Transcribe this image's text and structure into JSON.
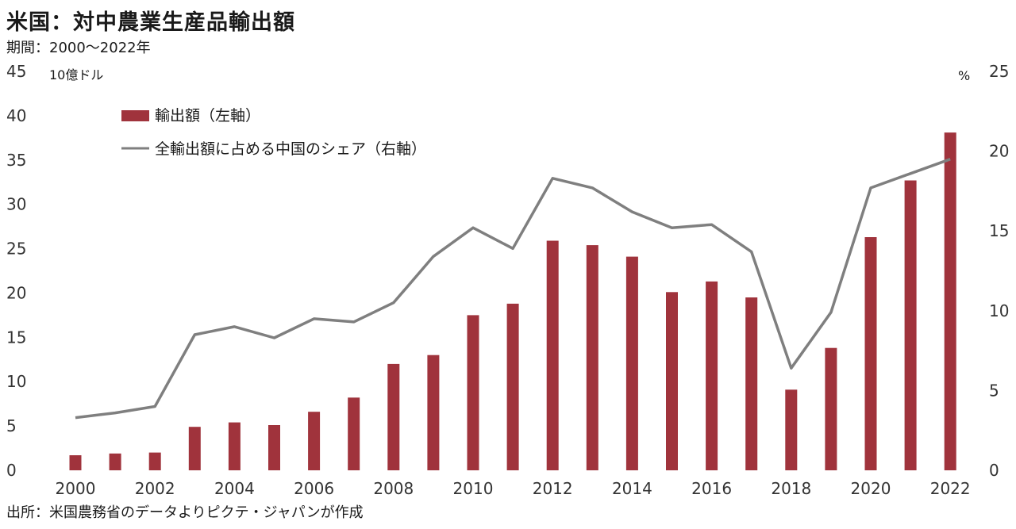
{
  "title": "米国：対中農業生産品輸出額",
  "period": "期間：2000～2022年",
  "source": "出所：米国農務省のデータよりピクテ・ジャパンが作成",
  "colors": {
    "bar": "#a0333c",
    "line": "#7f7f7f"
  },
  "chart_data": {
    "type": "bar",
    "title": "米国：対中農業生産品輸出額",
    "left_axis_unit": "10億ドル",
    "right_axis_unit": "%",
    "x": [
      2000,
      2001,
      2002,
      2003,
      2004,
      2005,
      2006,
      2007,
      2008,
      2009,
      2010,
      2011,
      2012,
      2013,
      2014,
      2015,
      2016,
      2017,
      2018,
      2019,
      2020,
      2021,
      2022
    ],
    "x_tick_labels": [
      "2000",
      "2002",
      "2004",
      "2006",
      "2008",
      "2010",
      "2012",
      "2014",
      "2016",
      "2018",
      "2020",
      "2022"
    ],
    "y_left": {
      "min": 0,
      "max": 45,
      "ticks": [
        "0",
        "5",
        "10",
        "15",
        "20",
        "25",
        "30",
        "35",
        "40",
        "45"
      ]
    },
    "y_right": {
      "min": 0,
      "max": 25,
      "ticks": [
        "0",
        "5",
        "10",
        "15",
        "20",
        "25"
      ]
    },
    "grid": false,
    "legend_position": "top-left",
    "series": [
      {
        "name": "輸出額（左軸）",
        "type": "bar",
        "axis": "left",
        "values": [
          1.7,
          1.9,
          2.0,
          4.9,
          5.4,
          5.1,
          6.6,
          8.2,
          12.0,
          13.0,
          17.5,
          18.8,
          25.9,
          25.4,
          24.1,
          20.1,
          21.3,
          19.5,
          9.1,
          13.8,
          26.3,
          32.7,
          38.1
        ]
      },
      {
        "name": "全輸出額に占める中国のシェア（右軸）",
        "type": "line",
        "axis": "right",
        "values": [
          3.3,
          3.6,
          4.0,
          8.5,
          9.0,
          8.3,
          9.5,
          9.3,
          10.5,
          13.4,
          15.2,
          13.9,
          18.3,
          17.7,
          16.2,
          15.2,
          15.4,
          13.7,
          6.4,
          9.9,
          17.7,
          18.6,
          19.5
        ]
      }
    ]
  }
}
